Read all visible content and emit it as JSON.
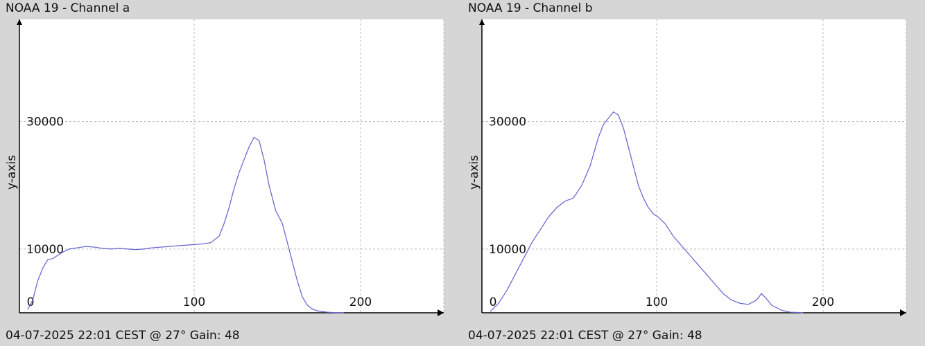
{
  "colors": {
    "background": "#d6d6d6",
    "plot": "#ffffff",
    "line": "#6a6ad0",
    "grid": "#bbbbbb",
    "axis": "#000000"
  },
  "panels": [
    {
      "title": "NOAA 19 - Channel a",
      "footer": "04-07-2025 22:01 CEST @ 27° Gain: 48"
    },
    {
      "title": "NOAA 19 - Channel b",
      "footer": "04-07-2025 22:01 CEST @ 27° Gain: 48"
    }
  ],
  "chart_data": [
    {
      "type": "line",
      "title": "NOAA 19 - Channel a",
      "xlabel": "",
      "ylabel": "y-axis",
      "xlim": [
        0,
        250
      ],
      "ylim": [
        0,
        46000
      ],
      "grid": true,
      "xticks": [
        {
          "value": 0,
          "label": "0"
        },
        {
          "value": 100,
          "label": "100"
        },
        {
          "value": 200,
          "label": "200"
        }
      ],
      "yticks": [
        {
          "value": 10000,
          "label": "10000"
        },
        {
          "value": 30000,
          "label": "30000"
        }
      ],
      "series": [
        {
          "x": [
            0,
            3,
            6,
            9,
            12,
            15,
            18,
            21,
            25,
            30,
            35,
            40,
            45,
            50,
            55,
            60,
            65,
            70,
            75,
            80,
            85,
            90,
            95,
            100,
            105,
            110,
            115,
            118,
            121,
            124,
            127,
            130,
            133,
            136,
            139,
            142,
            145,
            147,
            149,
            151,
            153,
            156,
            159,
            162,
            165,
            168,
            171,
            174,
            177,
            180,
            183,
            187,
            190
          ],
          "y": [
            500,
            2000,
            5000,
            7000,
            8300,
            8500,
            9000,
            9500,
            10000,
            10200,
            10400,
            10300,
            10100,
            10000,
            10100,
            10000,
            9900,
            10000,
            10200,
            10300,
            10400,
            10500,
            10600,
            10700,
            10800,
            11000,
            12000,
            14000,
            16500,
            19500,
            22000,
            24000,
            26000,
            27500,
            27000,
            24000,
            20000,
            18000,
            16000,
            15000,
            14000,
            11000,
            8000,
            5000,
            2500,
            1200,
            600,
            300,
            200,
            100,
            50,
            20,
            0
          ]
        }
      ]
    },
    {
      "type": "line",
      "title": "NOAA 19 - Channel b",
      "xlabel": "",
      "ylabel": "y-axis",
      "xlim": [
        0,
        250
      ],
      "ylim": [
        0,
        46000
      ],
      "grid": true,
      "xticks": [
        {
          "value": 0,
          "label": "0"
        },
        {
          "value": 100,
          "label": "100"
        },
        {
          "value": 200,
          "label": "200"
        }
      ],
      "yticks": [
        {
          "value": 10000,
          "label": "10000"
        },
        {
          "value": 30000,
          "label": "30000"
        }
      ],
      "series": [
        {
          "x": [
            0,
            5,
            10,
            15,
            20,
            25,
            30,
            35,
            40,
            45,
            50,
            55,
            60,
            65,
            68,
            71,
            74,
            77,
            80,
            83,
            86,
            89,
            92,
            95,
            98,
            101,
            105,
            110,
            115,
            120,
            125,
            130,
            135,
            140,
            145,
            150,
            155,
            160,
            163,
            166,
            169,
            172,
            175,
            180,
            185,
            188
          ],
          "y": [
            200,
            1500,
            3500,
            6000,
            8500,
            11000,
            13000,
            15000,
            16500,
            17500,
            18000,
            20000,
            23000,
            27500,
            29500,
            30500,
            31500,
            31000,
            29000,
            26000,
            23000,
            20000,
            18000,
            16500,
            15500,
            15000,
            14000,
            12000,
            10500,
            9000,
            7500,
            6000,
            4500,
            3000,
            2000,
            1500,
            1300,
            2000,
            3000,
            2200,
            1200,
            800,
            400,
            100,
            50,
            0
          ]
        }
      ]
    }
  ]
}
